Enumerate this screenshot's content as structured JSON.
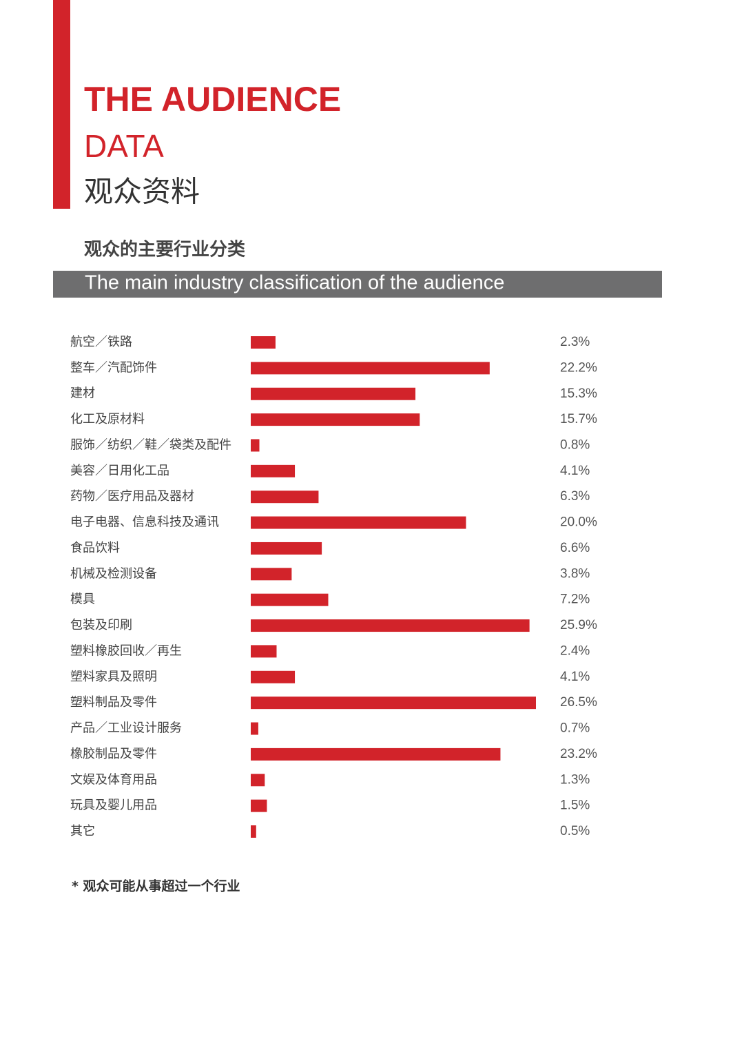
{
  "header": {
    "title": "THE AUDIENCE",
    "subtitle": "DATA",
    "subtitle_cn": "观众资料"
  },
  "chart_data": {
    "type": "bar",
    "orientation": "horizontal",
    "title": "观众的主要行业分类",
    "subtitle": "The main industry classification of the audience",
    "categories": [
      "航空／铁路",
      "整车／汽配饰件",
      "建材",
      "化工及原材料",
      "服饰／纺织／鞋／袋类及配件",
      "美容／日用化工品",
      "药物／医疗用品及器材",
      "电子电器、信息科技及通讯",
      "食品饮料",
      "机械及检测设备",
      "模具",
      "包装及印刷",
      "塑料橡胶回收／再生",
      "塑料家具及照明",
      "塑料制品及零件",
      "产品／工业设计服务",
      "橡胶制品及零件",
      "文娱及体育用品",
      "玩具及婴儿用品",
      "其它"
    ],
    "values": [
      2.3,
      22.2,
      15.3,
      15.7,
      0.8,
      4.1,
      6.3,
      20.0,
      6.6,
      3.8,
      7.2,
      25.9,
      2.4,
      4.1,
      26.5,
      0.7,
      23.2,
      1.3,
      1.5,
      0.5
    ],
    "value_labels": [
      "2.3%",
      "22.2%",
      "15.3%",
      "15.7%",
      "0.8%",
      "4.1%",
      "6.3%",
      "20.0%",
      "6.6%",
      "3.8%",
      "7.2%",
      "25.9%",
      "2.4%",
      "4.1%",
      "26.5%",
      "0.7%",
      "23.2%",
      "1.3%",
      "1.5%",
      "0.5%"
    ],
    "color": "#d2232a",
    "annotations": [
      "* 观众可能从事超过一个行业"
    ]
  }
}
